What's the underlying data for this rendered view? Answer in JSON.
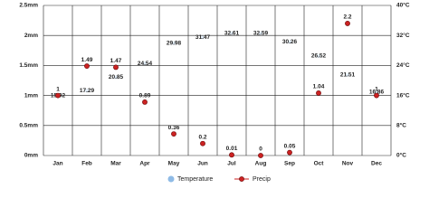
{
  "chart_data": {
    "type": "climate",
    "categories": [
      "Jan",
      "Feb",
      "Mar",
      "Apr",
      "May",
      "Jun",
      "Jul",
      "Aug",
      "Sep",
      "Oct",
      "Nov",
      "Dec"
    ],
    "series": [
      {
        "name": "Temperature",
        "color": "#8fbbe6",
        "axis": "y2",
        "values": [
          15.92,
          17.29,
          20.85,
          24.54,
          29.98,
          31.47,
          32.61,
          32.59,
          30.26,
          26.52,
          21.51,
          16.86
        ]
      },
      {
        "name": "Precip",
        "color": "#cc2222",
        "values": [
          1,
          1.49,
          1.47,
          0.89,
          0.36,
          0.2,
          0.01,
          0,
          0.05,
          1.04,
          2.2,
          1
        ]
      }
    ],
    "ylim": [
      0,
      2.5
    ],
    "yticks": [
      {
        "value": 0,
        "label": "0mm"
      },
      {
        "value": 0.5,
        "label": "0.5mm"
      },
      {
        "value": 1,
        "label": "1mm"
      },
      {
        "value": 1.5,
        "label": "1.5mm"
      },
      {
        "value": 2,
        "label": "2mm"
      },
      {
        "value": 2.5,
        "label": "2.5mm"
      }
    ],
    "y2lim": [
      0,
      40
    ],
    "y2ticks": [
      {
        "value": 0,
        "label": "0°C"
      },
      {
        "value": 8,
        "label": "8°C"
      },
      {
        "value": 16,
        "label": "16°C"
      },
      {
        "value": 24,
        "label": "24°C"
      },
      {
        "value": 32,
        "label": "32°C"
      },
      {
        "value": 40,
        "label": "40°C"
      }
    ],
    "grid": true
  }
}
